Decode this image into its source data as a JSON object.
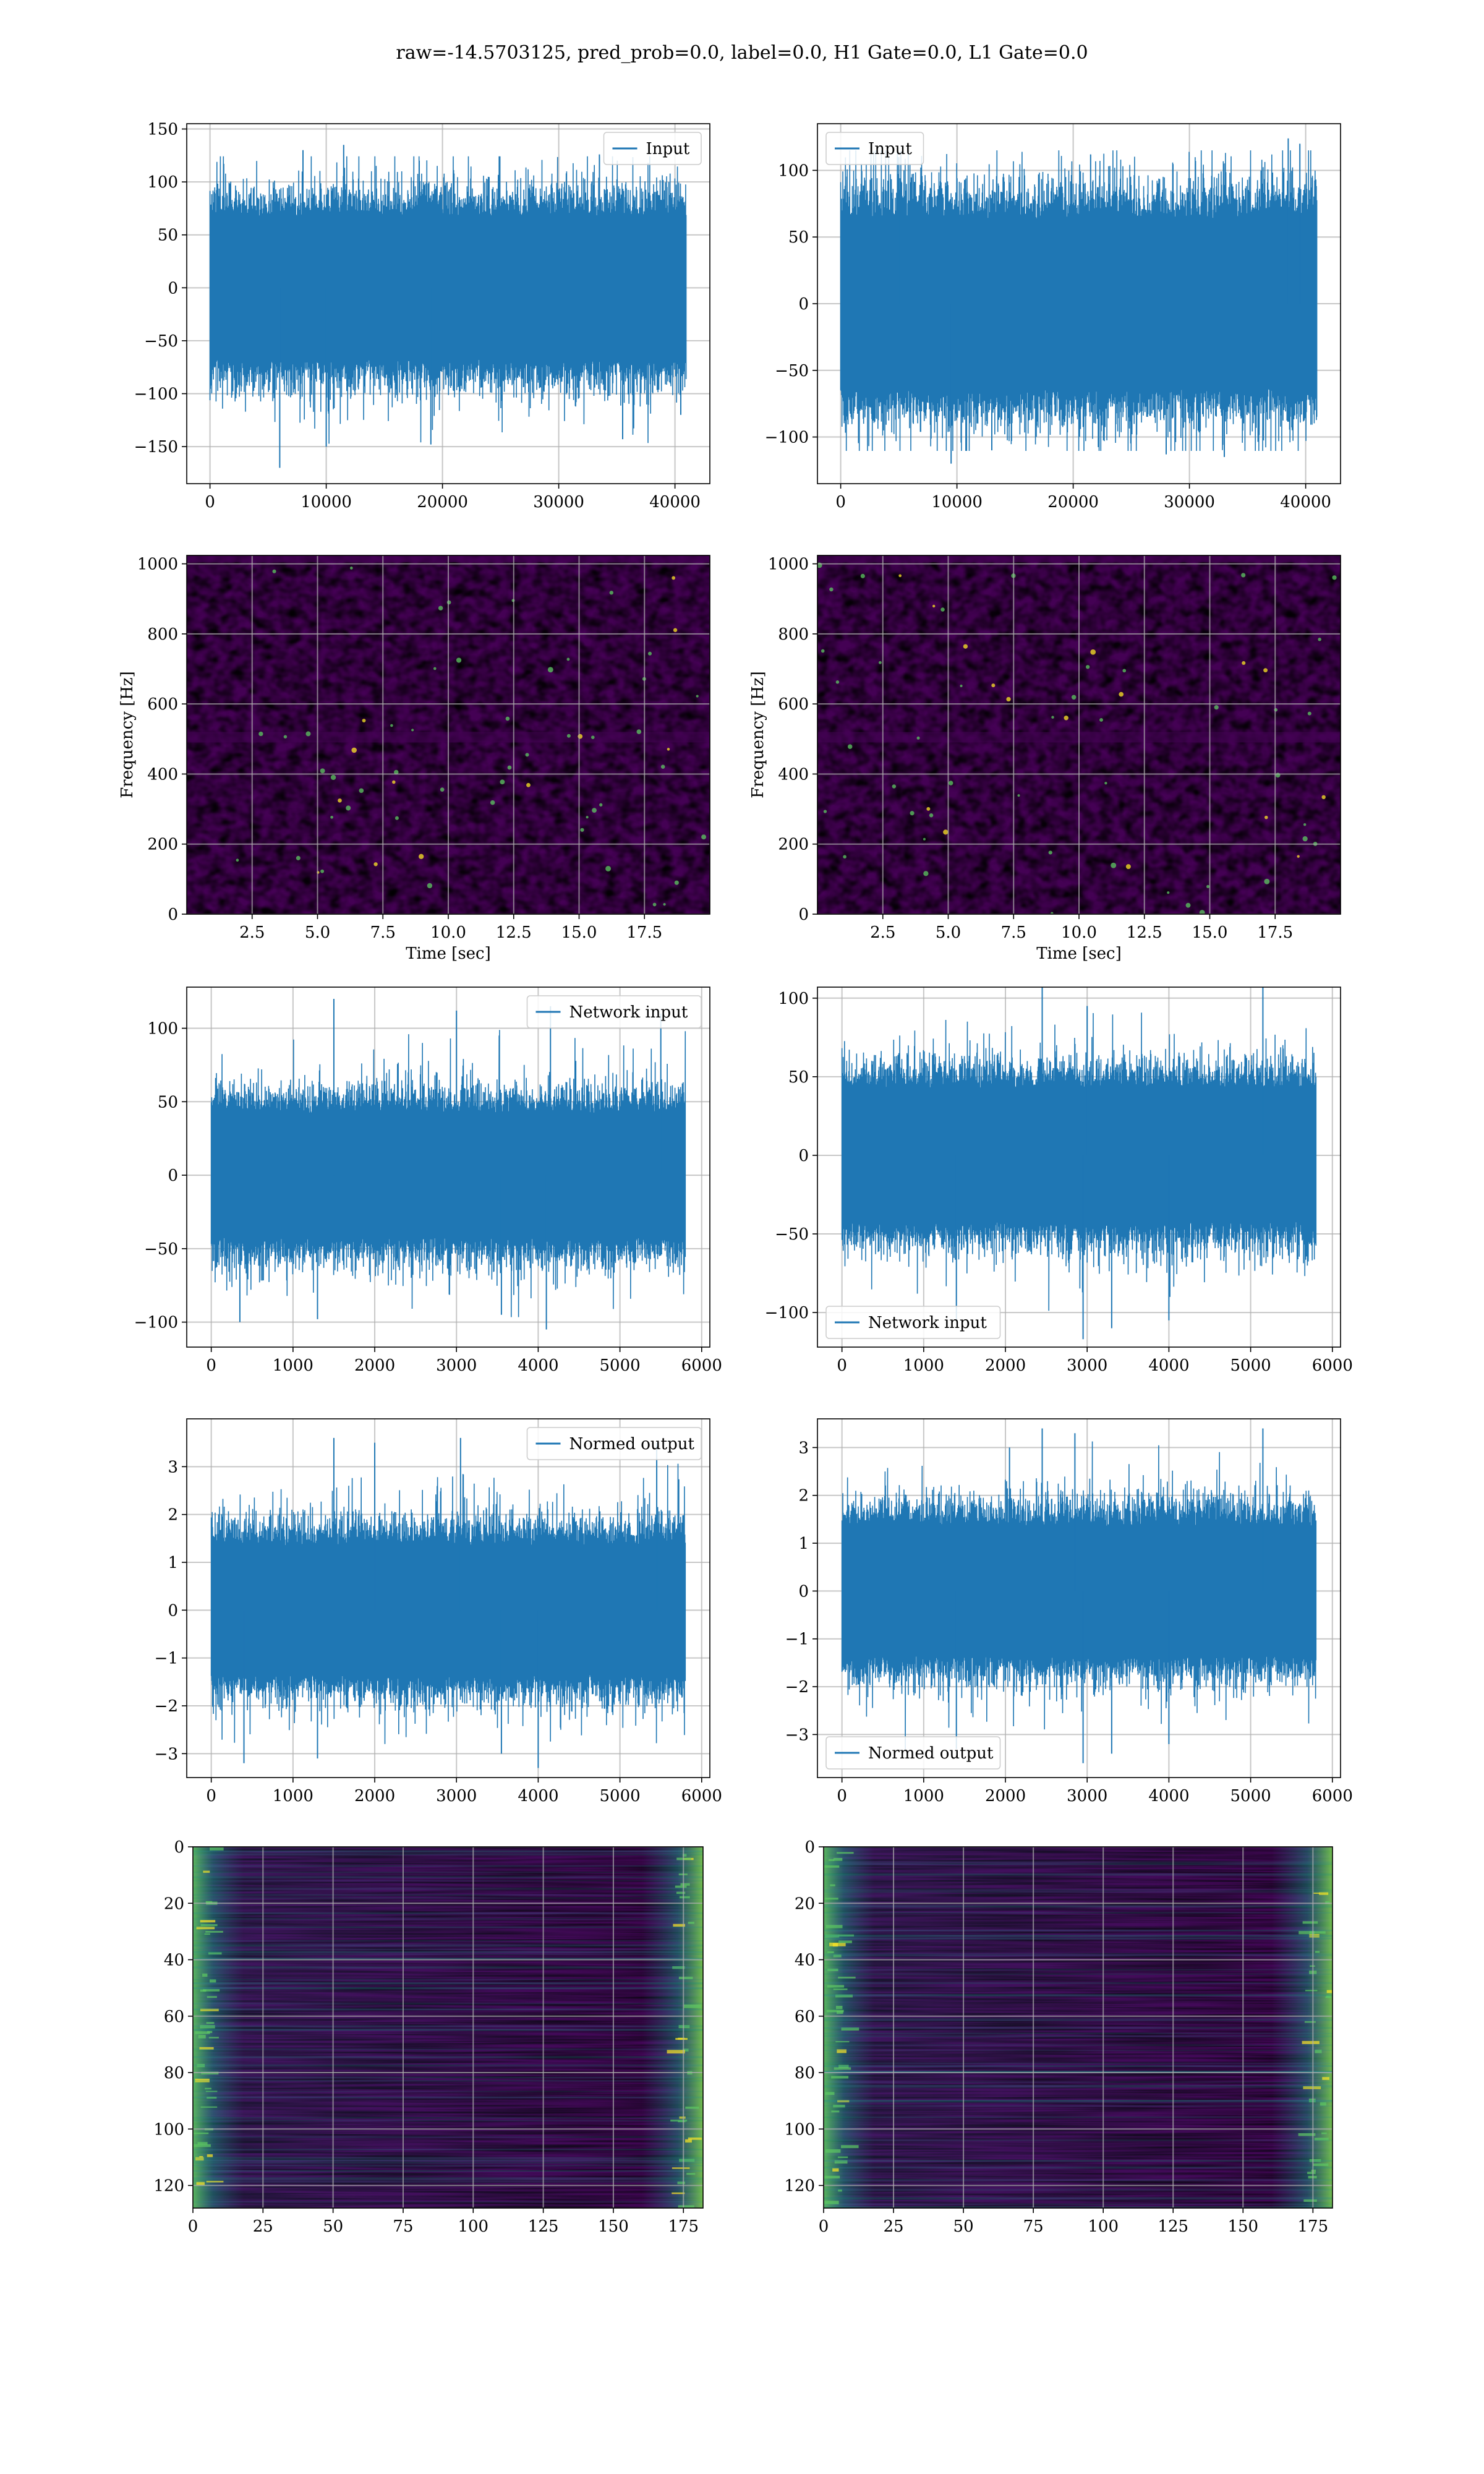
{
  "figure": {
    "title": "raw=-14.5703125, pred_prob=0.0, label=0.0, H1 Gate=0.0, L1 Gate=0.0"
  },
  "colors": {
    "line": "#1f77b4",
    "grid": "#b0b0b0",
    "viridis_dark": "#440154",
    "viridis_low": "#3b2a76",
    "viridis_mid": "#21918c",
    "viridis_high": "#5ec962",
    "viridis_top": "#fde725"
  },
  "chart_data": [
    {
      "id": "p1",
      "type": "line",
      "row": 1,
      "col": 1,
      "title": "",
      "xlabel": "",
      "ylabel": "",
      "xlim": [
        -2000,
        43000
      ],
      "ylim": [
        -185,
        155
      ],
      "xticks": [
        0,
        10000,
        20000,
        30000,
        40000
      ],
      "xtick_labels": [
        "0",
        "10000",
        "20000",
        "30000",
        "40000"
      ],
      "yticks": [
        -150,
        -100,
        -50,
        0,
        50,
        100,
        150
      ],
      "ytick_labels": [
        "−150",
        "−100",
        "−50",
        "0",
        "50",
        "100",
        "150"
      ],
      "grid": true,
      "legend": {
        "position": "upper right",
        "entries": [
          "Input"
        ]
      },
      "series": [
        {
          "name": "Input",
          "x_range": [
            0,
            40960
          ],
          "core": [
            -80,
            80
          ],
          "extreme": [
            -170,
            135
          ],
          "spikes_hi": [
            [
              8000,
              130
            ],
            [
              11500,
              135
            ],
            [
              18000,
              120
            ],
            [
              33500,
              126
            ]
          ],
          "spikes_lo": [
            [
              6000,
              -170
            ],
            [
              10000,
              -150
            ],
            [
              19000,
              -148
            ],
            [
              35500,
              -143
            ],
            [
              40500,
              -120
            ]
          ]
        }
      ]
    },
    {
      "id": "p2",
      "type": "line",
      "row": 1,
      "col": 2,
      "title": "",
      "xlabel": "",
      "ylabel": "",
      "xlim": [
        -2000,
        43000
      ],
      "ylim": [
        -135,
        135
      ],
      "xticks": [
        0,
        10000,
        20000,
        30000,
        40000
      ],
      "xtick_labels": [
        "0",
        "10000",
        "20000",
        "30000",
        "40000"
      ],
      "yticks": [
        -100,
        -50,
        0,
        50,
        100
      ],
      "ytick_labels": [
        "−100",
        "−50",
        "0",
        "50",
        "100"
      ],
      "grid": true,
      "legend": {
        "position": "upper left",
        "entries": [
          "Input"
        ]
      },
      "series": [
        {
          "name": "Input",
          "x_range": [
            0,
            40960
          ],
          "core": [
            -75,
            75
          ],
          "extreme": [
            -120,
            125
          ],
          "spikes_hi": [
            [
              5000,
              110
            ],
            [
              21500,
              112
            ],
            [
              38500,
              124
            ],
            [
              39500,
              120
            ]
          ],
          "spikes_lo": [
            [
              9500,
              -120
            ],
            [
              13000,
              -110
            ],
            [
              28000,
              -113
            ],
            [
              33000,
              -115
            ]
          ]
        }
      ]
    },
    {
      "id": "p3",
      "type": "heatmap",
      "row": 2,
      "col": 1,
      "title": "",
      "xlabel": "Time [sec]",
      "ylabel": "Frequency [Hz]",
      "xlim": [
        0,
        20
      ],
      "ylim": [
        0,
        1024
      ],
      "xticks": [
        2.5,
        5.0,
        7.5,
        10.0,
        12.5,
        15.0,
        17.5
      ],
      "xtick_labels": [
        "2.5",
        "5.0",
        "7.5",
        "10.0",
        "12.5",
        "15.0",
        "17.5"
      ],
      "yticks": [
        0,
        200,
        400,
        600,
        800,
        1000
      ],
      "ytick_labels": [
        "0",
        "200",
        "400",
        "600",
        "800",
        "1000"
      ],
      "grid": true,
      "colormap": "viridis",
      "content": "spectrogram noise"
    },
    {
      "id": "p4",
      "type": "heatmap",
      "row": 2,
      "col": 2,
      "title": "",
      "xlabel": "Time [sec]",
      "ylabel": "Frequency [Hz]",
      "xlim": [
        0,
        20
      ],
      "ylim": [
        0,
        1024
      ],
      "xticks": [
        2.5,
        5.0,
        7.5,
        10.0,
        12.5,
        15.0,
        17.5
      ],
      "xtick_labels": [
        "2.5",
        "5.0",
        "7.5",
        "10.0",
        "12.5",
        "15.0",
        "17.5"
      ],
      "yticks": [
        0,
        200,
        400,
        600,
        800,
        1000
      ],
      "ytick_labels": [
        "0",
        "200",
        "400",
        "600",
        "800",
        "1000"
      ],
      "grid": true,
      "colormap": "viridis",
      "content": "spectrogram noise"
    },
    {
      "id": "p5",
      "type": "line",
      "row": 3,
      "col": 1,
      "title": "",
      "xlabel": "",
      "ylabel": "",
      "xlim": [
        -300,
        6100
      ],
      "ylim": [
        -117,
        128
      ],
      "xticks": [
        0,
        1000,
        2000,
        3000,
        4000,
        5000,
        6000
      ],
      "xtick_labels": [
        "0",
        "1000",
        "2000",
        "3000",
        "4000",
        "5000",
        "6000"
      ],
      "yticks": [
        -100,
        -50,
        0,
        50,
        100
      ],
      "ytick_labels": [
        "−100",
        "−50",
        "0",
        "50",
        "100"
      ],
      "grid": true,
      "legend": {
        "position": "upper right",
        "entries": [
          "Network input"
        ]
      },
      "series": [
        {
          "name": "Network input",
          "x_range": [
            0,
            5800
          ],
          "core": [
            -50,
            50
          ],
          "extreme": [
            -105,
            120
          ],
          "spikes_hi": [
            [
              1500,
              120
            ],
            [
              3000,
              112
            ],
            [
              4150,
              115
            ],
            [
              5500,
              110
            ]
          ],
          "spikes_lo": [
            [
              350,
              -100
            ],
            [
              1300,
              -98
            ],
            [
              4100,
              -105
            ],
            [
              3550,
              -95
            ]
          ]
        }
      ]
    },
    {
      "id": "p6",
      "type": "line",
      "row": 3,
      "col": 2,
      "title": "",
      "xlabel": "",
      "ylabel": "",
      "xlim": [
        -300,
        6100
      ],
      "ylim": [
        -122,
        107
      ],
      "xticks": [
        0,
        1000,
        2000,
        3000,
        4000,
        5000,
        6000
      ],
      "xtick_labels": [
        "0",
        "1000",
        "2000",
        "3000",
        "4000",
        "5000",
        "6000"
      ],
      "yticks": [
        -100,
        -50,
        0,
        50,
        100
      ],
      "ytick_labels": [
        "−100",
        "−50",
        "0",
        "50",
        "100"
      ],
      "grid": true,
      "legend": {
        "position": "lower left",
        "entries": [
          "Network input"
        ]
      },
      "series": [
        {
          "name": "Network input",
          "x_range": [
            0,
            5800
          ],
          "core": [
            -50,
            50
          ],
          "extreme": [
            -117,
            108
          ],
          "spikes_hi": [
            [
              2450,
              108
            ],
            [
              5150,
              107
            ],
            [
              3000,
              95
            ]
          ],
          "spikes_lo": [
            [
              1400,
              -105
            ],
            [
              2950,
              -117
            ],
            [
              3300,
              -110
            ],
            [
              4000,
              -105
            ]
          ]
        }
      ]
    },
    {
      "id": "p7",
      "type": "line",
      "row": 4,
      "col": 1,
      "title": "",
      "xlabel": "",
      "ylabel": "",
      "xlim": [
        -300,
        6100
      ],
      "ylim": [
        -3.5,
        4.0
      ],
      "xticks": [
        0,
        1000,
        2000,
        3000,
        4000,
        5000,
        6000
      ],
      "xtick_labels": [
        "0",
        "1000",
        "2000",
        "3000",
        "4000",
        "5000",
        "6000"
      ],
      "yticks": [
        -3,
        -2,
        -1,
        0,
        1,
        2,
        3
      ],
      "ytick_labels": [
        "−3",
        "−2",
        "−1",
        "0",
        "1",
        "2",
        "3"
      ],
      "grid": true,
      "legend": {
        "position": "upper right",
        "entries": [
          "Normed output"
        ]
      },
      "series": [
        {
          "name": "Normed output",
          "x_range": [
            0,
            5800
          ],
          "core": [
            -1.6,
            1.6
          ],
          "extreme": [
            -3.2,
            3.6
          ],
          "spikes_hi": [
            [
              1500,
              3.6
            ],
            [
              2000,
              3.5
            ],
            [
              3050,
              3.6
            ],
            [
              5450,
              3.5
            ]
          ],
          "spikes_lo": [
            [
              400,
              -3.2
            ],
            [
              1300,
              -3.1
            ],
            [
              4000,
              -3.3
            ],
            [
              3550,
              -3.0
            ]
          ]
        }
      ]
    },
    {
      "id": "p8",
      "type": "line",
      "row": 4,
      "col": 2,
      "title": "",
      "xlabel": "",
      "ylabel": "",
      "xlim": [
        -300,
        6100
      ],
      "ylim": [
        -3.9,
        3.6
      ],
      "xticks": [
        0,
        1000,
        2000,
        3000,
        4000,
        5000,
        6000
      ],
      "xtick_labels": [
        "0",
        "1000",
        "2000",
        "3000",
        "4000",
        "5000",
        "6000"
      ],
      "yticks": [
        -3,
        -2,
        -1,
        0,
        1,
        2,
        3
      ],
      "ytick_labels": [
        "−3",
        "−2",
        "−1",
        "0",
        "1",
        "2",
        "3"
      ],
      "grid": true,
      "legend": {
        "position": "lower left",
        "entries": [
          "Normed output"
        ]
      },
      "series": [
        {
          "name": "Normed output",
          "x_range": [
            0,
            5800
          ],
          "core": [
            -1.6,
            1.6
          ],
          "extreme": [
            -3.6,
            3.4
          ],
          "spikes_hi": [
            [
              2450,
              3.4
            ],
            [
              2850,
              3.3
            ],
            [
              5150,
              3.4
            ],
            [
              2050,
              3.0
            ]
          ],
          "spikes_lo": [
            [
              1400,
              -3.3
            ],
            [
              2950,
              -3.6
            ],
            [
              3300,
              -3.4
            ],
            [
              4000,
              -3.2
            ]
          ]
        }
      ]
    },
    {
      "id": "p9",
      "type": "heatmap",
      "row": 5,
      "col": 1,
      "title": "",
      "xlabel": "",
      "ylabel": "",
      "xlim": [
        0,
        182
      ],
      "ylim": [
        128,
        0
      ],
      "xticks": [
        0,
        25,
        50,
        75,
        100,
        125,
        150,
        175
      ],
      "xtick_labels": [
        "0",
        "25",
        "50",
        "75",
        "100",
        "125",
        "150",
        "175"
      ],
      "yticks": [
        0,
        20,
        40,
        60,
        80,
        100,
        120
      ],
      "ytick_labels": [
        "0",
        "20",
        "40",
        "60",
        "80",
        "100",
        "120"
      ],
      "grid": true,
      "colormap": "viridis",
      "content": "feature map, bright at left and right edges"
    },
    {
      "id": "p10",
      "type": "heatmap",
      "row": 5,
      "col": 2,
      "title": "",
      "xlabel": "",
      "ylabel": "",
      "xlim": [
        0,
        182
      ],
      "ylim": [
        128,
        0
      ],
      "xticks": [
        0,
        25,
        50,
        75,
        100,
        125,
        150,
        175
      ],
      "xtick_labels": [
        "0",
        "25",
        "50",
        "75",
        "100",
        "125",
        "150",
        "175"
      ],
      "yticks": [
        0,
        20,
        40,
        60,
        80,
        100,
        120
      ],
      "ytick_labels": [
        "0",
        "20",
        "40",
        "60",
        "80",
        "100",
        "120"
      ],
      "grid": true,
      "colormap": "viridis",
      "content": "feature map, bright at left and right edges"
    }
  ]
}
